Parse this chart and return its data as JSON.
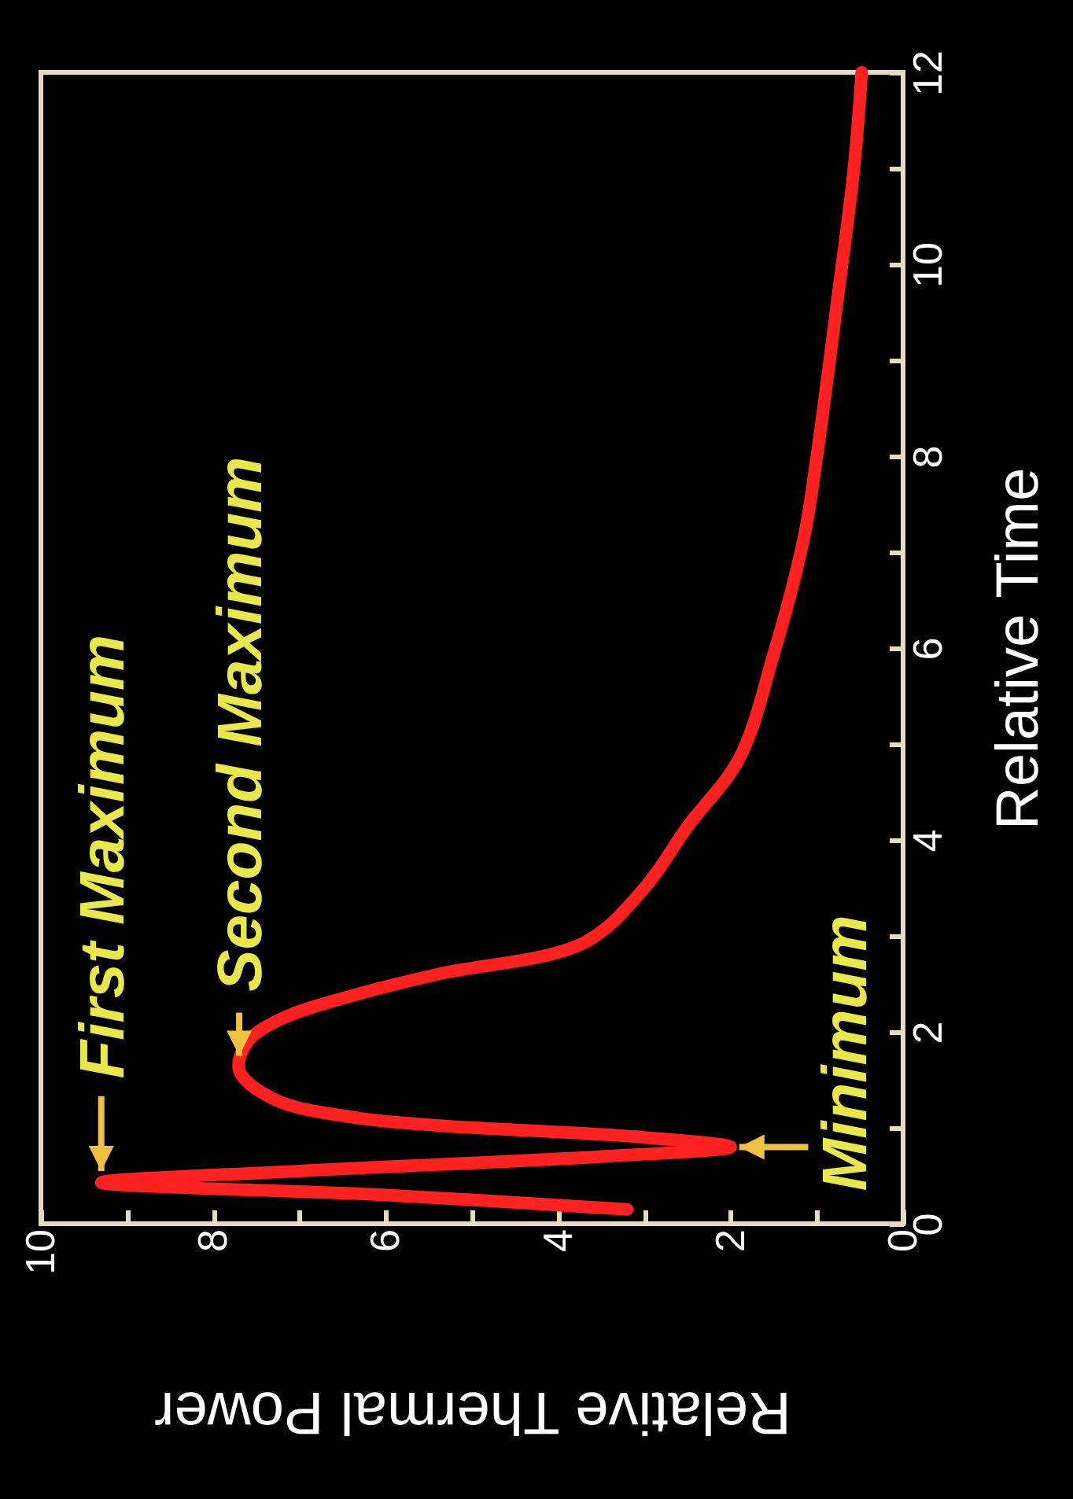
{
  "chart_data": {
    "type": "line",
    "xlabel": "Relative Thermal Power",
    "ylabel": "Relative Time",
    "x": [
      3.2,
      6,
      9.3,
      7,
      3.5,
      2.0,
      3.0,
      6.3,
      7.3,
      7.7,
      7.6,
      7.2,
      6.3,
      5.4,
      3.7,
      3.0,
      2.5,
      1.9,
      1.5,
      1.15,
      1.0,
      0.77,
      0.57,
      0.48
    ],
    "series": [
      {
        "color": "#ff2020",
        "values": [
          0.15,
          0.3,
          0.43,
          0.55,
          0.7,
          0.8,
          0.9,
          1.1,
          1.3,
          1.6,
          1.9,
          2.14,
          2.4,
          2.6,
          2.93,
          3.5,
          4.14,
          4.85,
          5.94,
          7.15,
          8,
          9.57,
          11,
          12
        ]
      }
    ],
    "xlim": [
      10,
      0
    ],
    "ylim": [
      0,
      12
    ],
    "xticks": [
      10,
      {
        "value": 9,
        "label": null
      },
      8,
      {
        "value": 7,
        "label": null
      },
      6,
      {
        "value": 5,
        "label": null
      },
      4,
      {
        "value": 3,
        "label": null
      },
      2,
      {
        "value": 1,
        "label": null
      },
      0
    ],
    "yticks": [
      0,
      {
        "value": 1,
        "label": null
      },
      2,
      {
        "value": 3,
        "label": null
      },
      4,
      {
        "value": 5,
        "label": null
      },
      6,
      {
        "value": 7,
        "label": null
      },
      8,
      {
        "value": 9,
        "label": null
      },
      10,
      {
        "value": 11,
        "label": null
      },
      12
    ],
    "annotations": [
      {
        "text": "First Maximum",
        "x": 9.3,
        "y": 0.43
      },
      {
        "text": "Second Maximum",
        "x": 7.7,
        "y": 1.6
      },
      {
        "text": "Minimum",
        "x": 2.0,
        "y": 0.8
      }
    ]
  }
}
